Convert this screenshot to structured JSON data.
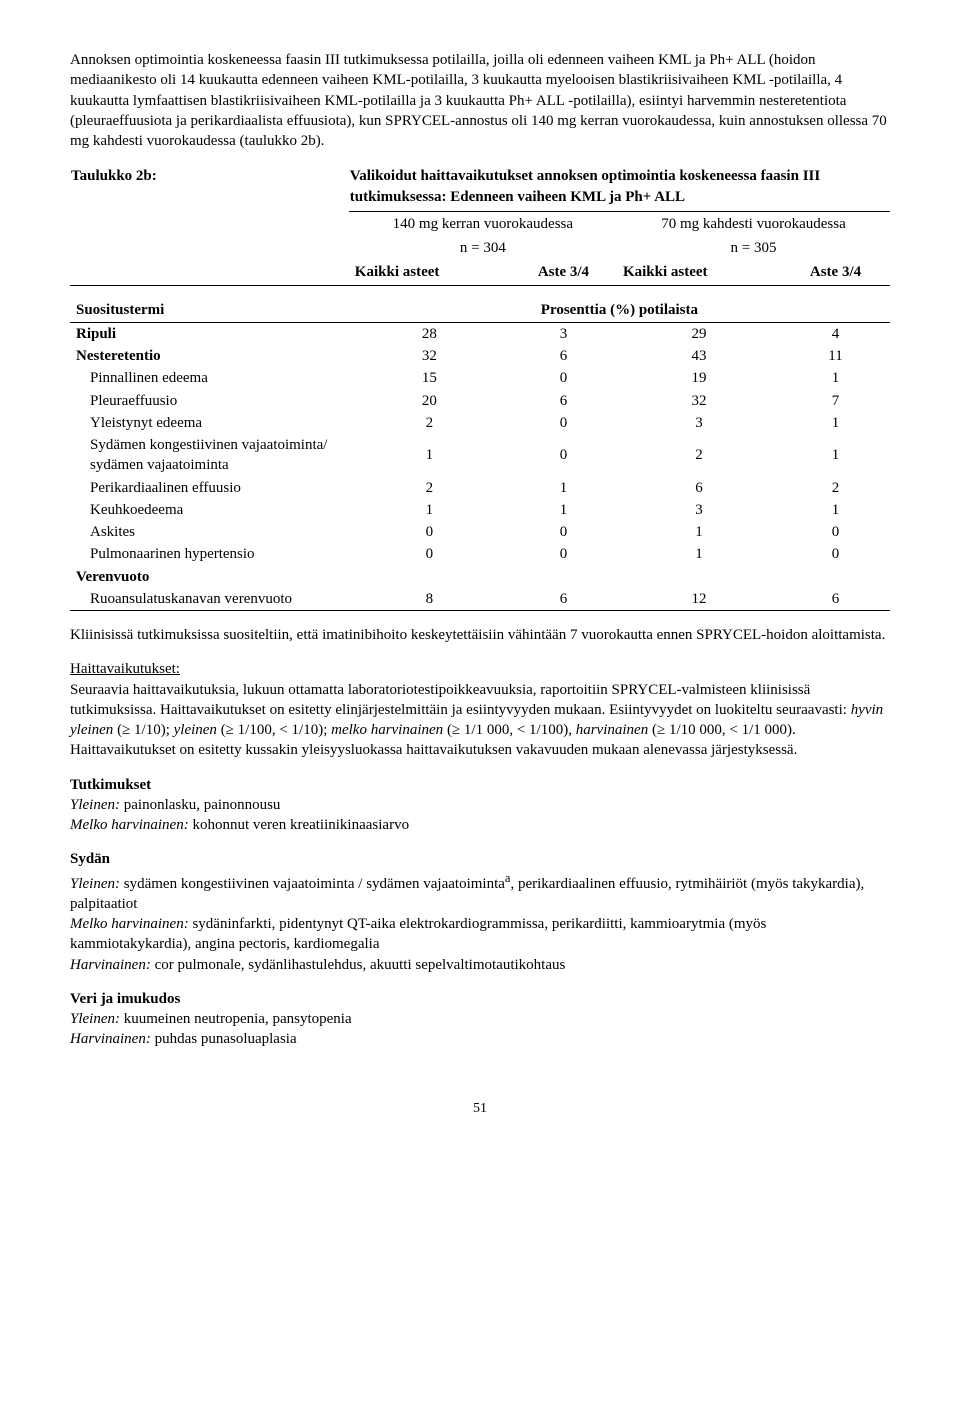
{
  "intro": {
    "text": "Annoksen optimointia koskeneessa faasin III tutkimuksessa potilailla, joilla oli edenneen vaiheen KML ja Ph+ ALL (hoidon mediaanikesto oli 14 kuukautta edenneen vaiheen KML-potilailla, 3 kuukautta myelooisen blastikriisivaiheen KML -potilailla, 4 kuukautta lymfaattisen blastikriisivaiheen KML-potilailla ja 3 kuukautta Ph+ ALL -potilailla), esiintyi harvemmin nesteretentiota (pleuraeffuusiota ja perikardiaalista effuusiota), kun SPRYCEL-annostus oli 140 mg kerran vuorokaudessa, kuin annostuksen ollessa 70 mg kahdesti vuorokaudessa (taulukko 2b)."
  },
  "table2b": {
    "label": "Taulukko 2b:",
    "title": "Valikoidut haittavaikutukset annoksen optimointia koskeneessa faasin III tutkimuksessa: Edenneen vaiheen KML ja Ph+ ALL",
    "group1": {
      "dose": "140 mg kerran vuorokaudessa",
      "n": "n = 304"
    },
    "group2": {
      "dose": "70 mg kahdesti vuorokaudessa",
      "n": "n = 305"
    },
    "col_all": "Kaikki asteet",
    "col_34": "Aste 3/4",
    "suositus": "Suositustermi",
    "percent": "Prosenttia (%) potilaista",
    "rows": [
      {
        "label": "Ripuli",
        "bold": true,
        "indent": false,
        "v": [
          28,
          3,
          29,
          4
        ]
      },
      {
        "label": "Nesteretentio",
        "bold": true,
        "indent": false,
        "v": [
          32,
          6,
          43,
          11
        ]
      },
      {
        "label": "Pinnallinen edeema",
        "bold": false,
        "indent": true,
        "v": [
          15,
          0,
          19,
          1
        ]
      },
      {
        "label": "Pleuraeffuusio",
        "bold": false,
        "indent": true,
        "v": [
          20,
          6,
          32,
          7
        ]
      },
      {
        "label": "Yleistynyt edeema",
        "bold": false,
        "indent": true,
        "v": [
          2,
          0,
          3,
          1
        ]
      },
      {
        "label": "Sydämen kongestiivinen vajaatoiminta/ sydämen vajaatoiminta",
        "bold": false,
        "indent": true,
        "v": [
          1,
          0,
          2,
          1
        ]
      },
      {
        "label": "Perikardiaalinen effuusio",
        "bold": false,
        "indent": true,
        "v": [
          2,
          1,
          6,
          2
        ]
      },
      {
        "label": "Keuhkoedeema",
        "bold": false,
        "indent": true,
        "v": [
          1,
          1,
          3,
          1
        ]
      },
      {
        "label": "Askites",
        "bold": false,
        "indent": true,
        "v": [
          0,
          0,
          1,
          0
        ]
      },
      {
        "label": "Pulmonaarinen hypertensio",
        "bold": false,
        "indent": true,
        "v": [
          0,
          0,
          1,
          0
        ]
      },
      {
        "label": "Verenvuoto",
        "bold": true,
        "indent": false,
        "v": null
      },
      {
        "label": "Ruoansulatuskanavan verenvuoto",
        "bold": false,
        "indent": true,
        "v": [
          8,
          6,
          12,
          6
        ]
      }
    ]
  },
  "post_table": "Kliinisissä tutkimuksissa suositeltiin, että imatinibihoito keskeytettäisiin vähintään 7 vuorokautta ennen SPRYCEL-hoidon aloittamista.",
  "haitta": {
    "heading": "Haittavaikutukset:",
    "p1a": "Seuraavia haittavaikutuksia, lukuun ottamatta laboratoriotestipoikkeavuuksia, raportoitiin SPRYCEL-valmisteen kliinisissä tutkimuksissa. Haittavaikutukset on esitetty elinjärjestelmittäin ja esiintyvyyden mukaan. Esiintyvyydet on luokiteltu seuraavasti: ",
    "p1b": "hyvin yleinen",
    "p1c": " (≥ 1/10); ",
    "p1d": "yleinen",
    "p1e": " (≥ 1/100, < 1/10); ",
    "p1f": "melko harvinainen",
    "p1g": " (≥ 1/1 000, < 1/100), ",
    "p1h": "harvinainen",
    "p1i": " (≥ 1/10 000, < 1/1 000). Haittavaikutukset on esitetty kussakin yleisyysluokassa haittavaikutuksen vakavuuden mukaan alenevassa järjestyksessä."
  },
  "tutkimukset": {
    "heading": "Tutkimukset",
    "l1a": "Yleinen:",
    "l1b": " painonlasku, painonnousu",
    "l2a": "Melko harvinainen:",
    "l2b": " kohonnut veren kreatiinikinaasiarvo"
  },
  "sydan": {
    "heading": "Sydän",
    "l1a": "Yleinen:",
    "l1b_pre": " sydämen kongestiivinen vajaatoiminta / sydämen vajaatoiminta",
    "l1b_sup": "a",
    "l1b_post": ", perikardiaalinen effuusio, rytmihäiriöt (myös takykardia), palpitaatiot",
    "l2a": "Melko harvinainen:",
    "l2b": " sydäninfarkti, pidentynyt QT-aika elektrokardiogrammissa, perikardiitti, kammioarytmia (myös kammiotakykardia), angina pectoris, kardiomegalia",
    "l3a": "Harvinainen:",
    "l3b": " cor pulmonale, sydänlihastulehdus, akuutti sepelvaltimotautikohtaus"
  },
  "veri": {
    "heading": "Veri ja imukudos",
    "l1a": "Yleinen:",
    "l1b": " kuumeinen neutropenia, pansytopenia",
    "l2a": "Harvinainen:",
    "l2b": " puhdas punasoluaplasia"
  },
  "page": "51"
}
